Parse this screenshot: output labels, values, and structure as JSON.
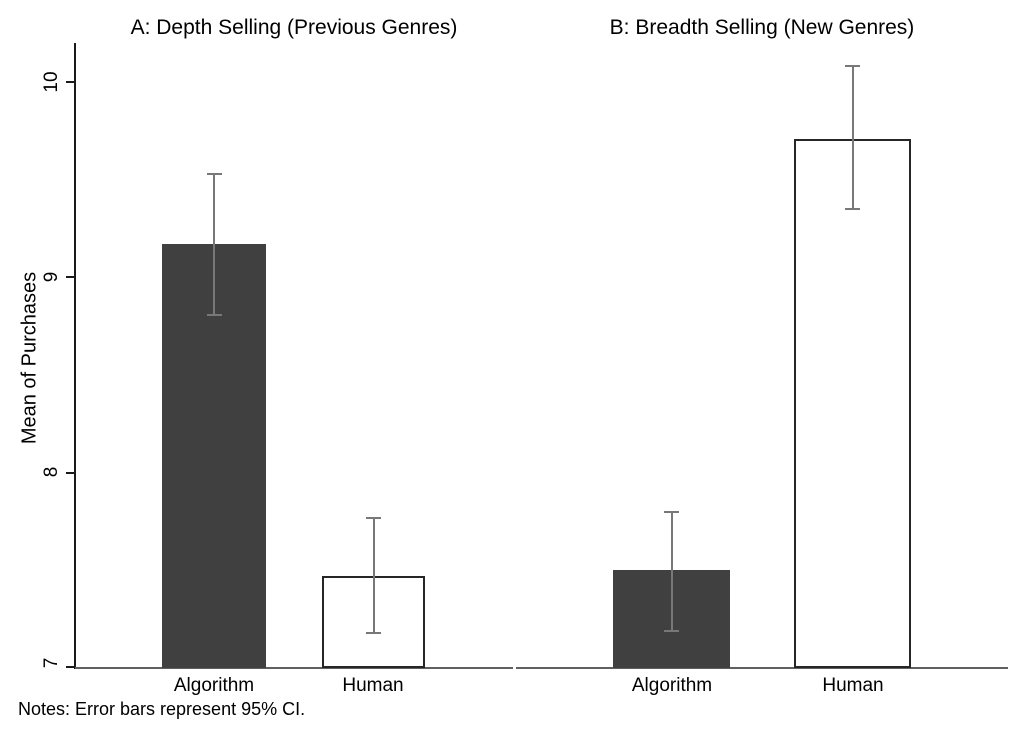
{
  "chart_data": {
    "type": "bar",
    "ylabel": "Mean of Purchases",
    "ylim": [
      7,
      10.2
    ],
    "yticks": [
      10,
      9,
      8,
      7
    ],
    "grid": false,
    "legend": "none",
    "notes": "Notes: Error bars represent 95% CI.",
    "panels": [
      {
        "id": "A",
        "title": "A: Depth Selling (Previous Genres)",
        "categories": [
          "Algorithm",
          "Human"
        ]
      },
      {
        "id": "B",
        "title": "B: Breadth Selling (New Genres)",
        "categories": [
          "Algorithm",
          "Human"
        ]
      }
    ],
    "points": [
      {
        "panel": "A",
        "category": "Algorithm",
        "mean": 9.17,
        "ci_low": 8.81,
        "ci_high": 9.53,
        "fill": "dark"
      },
      {
        "panel": "A",
        "category": "Human",
        "mean": 7.47,
        "ci_low": 7.18,
        "ci_high": 7.77,
        "fill": "white"
      },
      {
        "panel": "B",
        "category": "Algorithm",
        "mean": 7.5,
        "ci_low": 7.19,
        "ci_high": 7.8,
        "fill": "dark"
      },
      {
        "panel": "B",
        "category": "Human",
        "mean": 9.71,
        "ci_low": 9.35,
        "ci_high": 10.08,
        "fill": "white"
      }
    ],
    "colors": {
      "bar_dark": "#404040",
      "bar_light": "#ffffff",
      "bar_border": "#262626",
      "error": "#787878",
      "y_axis": "#1a1a1a",
      "x_axis": "#606060"
    }
  }
}
